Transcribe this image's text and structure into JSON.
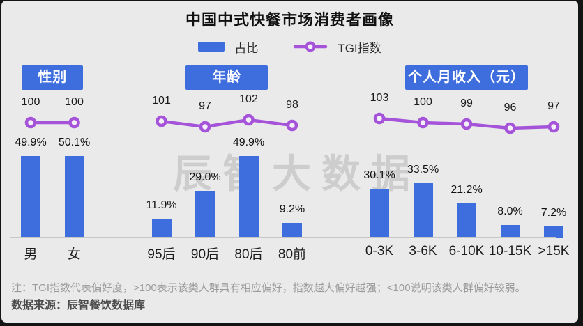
{
  "title": "中国中式快餐市场消费者画像",
  "legend": {
    "bar_label": "占比",
    "line_label": "TGI指数"
  },
  "watermark": "辰智大数据",
  "notes": {
    "note": "注：TGI指数代表偏好度，>100表示该类人群具有相应偏好，指数越大偏好越强；<100说明该类人群偏好较弱。",
    "source": "数据来源：辰智餐饮数据库"
  },
  "colors": {
    "bar": "#3E6EDE",
    "line": "#A554DA",
    "marker_fill": "#F4F0F8",
    "background": "#EAEAEA",
    "chip_text": "#FFFFFF",
    "axis": "#C6C6C6",
    "watermark_gray": "#BFBFBF"
  },
  "chart_data": {
    "type": "bar",
    "combo": "grouped bar + TGI line with circle markers",
    "title": "中国中式快餐市场消费者画像",
    "legend_entries": [
      "占比",
      "TGI指数"
    ],
    "legend_position": "top-center",
    "grid": false,
    "bar_value_unit": "%",
    "tgi_baseline": 100,
    "groups": [
      {
        "header": "性别",
        "categories": [
          "男",
          "女"
        ],
        "series": [
          {
            "name": "占比",
            "values": [
              49.9,
              50.1
            ],
            "unit": "%",
            "labels": [
              "49.9%",
              "50.1%"
            ]
          },
          {
            "name": "TGI指数",
            "values": [
              100,
              100
            ],
            "labels": [
              "100",
              "100"
            ]
          }
        ]
      },
      {
        "header": "年龄",
        "categories": [
          "95后",
          "90后",
          "80后",
          "80前"
        ],
        "series": [
          {
            "name": "占比",
            "values": [
              11.9,
              29.0,
              49.9,
              9.2
            ],
            "unit": "%",
            "labels": [
              "11.9%",
              "29.0%",
              "49.9%",
              "9.2%"
            ]
          },
          {
            "name": "TGI指数",
            "values": [
              101,
              97,
              102,
              98
            ],
            "labels": [
              "101",
              "97",
              "102",
              "98"
            ]
          }
        ]
      },
      {
        "header": "个人月收入（元）",
        "categories": [
          "0-3K",
          "3-6K",
          "6-10K",
          "10-15K",
          ">15K"
        ],
        "series": [
          {
            "name": "占比",
            "values": [
              30.1,
              33.5,
              21.2,
              8.0,
              7.2
            ],
            "unit": "%",
            "labels": [
              "30.1%",
              "33.5%",
              "21.2%",
              "8.0%",
              "7.2%"
            ]
          },
          {
            "name": "TGI指数",
            "values": [
              103,
              100,
              99,
              96,
              97
            ],
            "labels": [
              "103",
              "100",
              "99",
              "96",
              "97"
            ]
          }
        ]
      }
    ]
  }
}
